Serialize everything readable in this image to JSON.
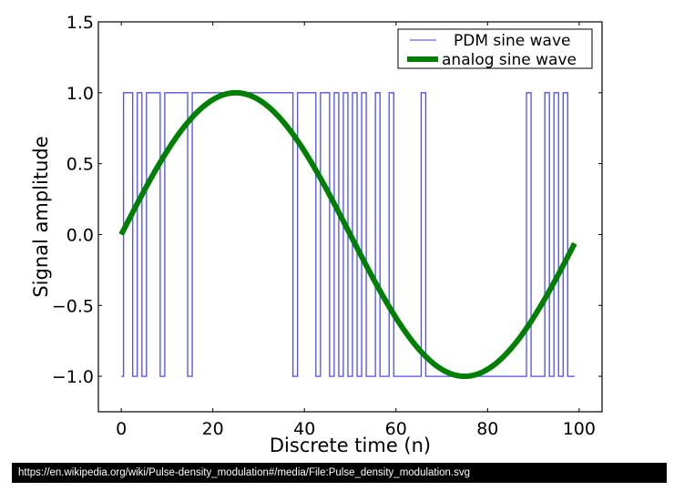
{
  "chart_data": {
    "type": "line",
    "title": "",
    "xlabel": "Discrete time (n)",
    "ylabel": "Signal amplitude",
    "xlim": [
      -5,
      105
    ],
    "ylim": [
      -1.25,
      1.5
    ],
    "grid": false,
    "legend_position": "top-right",
    "xticks": [
      0,
      20,
      40,
      60,
      80,
      100
    ],
    "xtick_labels": [
      "0",
      "20",
      "40",
      "60",
      "80",
      "100"
    ],
    "yticks": [
      -1.0,
      -0.5,
      0.0,
      0.5,
      1.0,
      1.5
    ],
    "ytick_labels": [
      "−1.0",
      "−0.5",
      "0.0",
      "0.5",
      "1.0",
      "1.5"
    ],
    "series": [
      {
        "name": "PDM sine wave",
        "color": "#0000ff",
        "style": "step",
        "x_start": 0,
        "x_step": 1,
        "values": [
          -1,
          1,
          1,
          -1,
          1,
          -1,
          1,
          1,
          1,
          -1,
          1,
          1,
          1,
          1,
          1,
          -1,
          1,
          1,
          1,
          1,
          1,
          1,
          1,
          1,
          1,
          1,
          1,
          1,
          1,
          1,
          1,
          1,
          1,
          1,
          1,
          1,
          1,
          1,
          -1,
          1,
          1,
          1,
          1,
          -1,
          1,
          1,
          -1,
          1,
          -1,
          1,
          -1,
          1,
          -1,
          1,
          -1,
          -1,
          1,
          -1,
          -1,
          1,
          -1,
          -1,
          -1,
          -1,
          -1,
          -1,
          1,
          -1,
          -1,
          -1,
          -1,
          -1,
          -1,
          -1,
          -1,
          -1,
          -1,
          -1,
          -1,
          -1,
          -1,
          -1,
          -1,
          -1,
          -1,
          -1,
          -1,
          -1,
          -1,
          1,
          -1,
          -1,
          -1,
          1,
          -1,
          1,
          -1,
          1,
          -1,
          -1
        ]
      },
      {
        "name": "analog sine wave",
        "color": "#008000",
        "style": "line",
        "function": "sin(2*pi*n/100)",
        "x_start": 0,
        "x_end": 99,
        "amplitude": 1,
        "period": 100
      }
    ]
  },
  "footer": {
    "url": "https://en.wikipedia.org/wiki/Pulse-density_modulation#/media/File:Pulse_density_modulation.svg"
  }
}
